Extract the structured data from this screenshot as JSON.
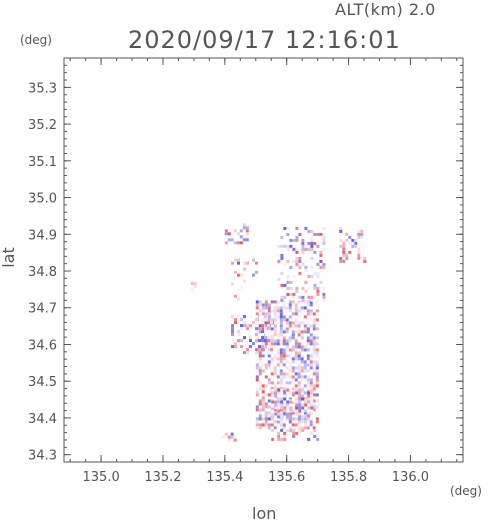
{
  "header": {
    "altitude_label": "ALT(km) 2.0",
    "timestamp": "2020/09/17 12:16:01"
  },
  "chart_data": {
    "type": "heatmap",
    "xlabel": "lon",
    "ylabel": "lat",
    "x_unit": "(deg)",
    "y_unit": "(deg)",
    "xlim": [
      134.88,
      136.17
    ],
    "ylim": [
      34.28,
      35.38
    ],
    "x_ticks": [
      "135.0",
      "135.2",
      "135.4",
      "135.6",
      "135.8",
      "136.0"
    ],
    "y_ticks": [
      "34.3",
      "34.4",
      "34.5",
      "34.6",
      "34.7",
      "34.8",
      "34.9",
      "35.0",
      "35.1",
      "35.2",
      "35.3"
    ],
    "colors": {
      "positive": "#e8595e",
      "negative": "#5a5ae0",
      "frame": "#555555"
    },
    "regions": [
      {
        "lon": [
          135.4,
          135.47
        ],
        "lat": [
          34.88,
          34.93
        ],
        "density": 0.5
      },
      {
        "lon": [
          135.38,
          135.45
        ],
        "lat": [
          34.34,
          34.36
        ],
        "density": 0.5
      },
      {
        "lon": [
          135.5,
          135.7
        ],
        "lat": [
          34.37,
          34.72
        ],
        "density": 0.75
      },
      {
        "lon": [
          135.55,
          135.68
        ],
        "lat": [
          34.4,
          34.48
        ],
        "density": 0.8
      },
      {
        "lon": [
          135.57,
          135.72
        ],
        "lat": [
          34.72,
          34.92
        ],
        "density": 0.35
      },
      {
        "lon": [
          135.77,
          135.85
        ],
        "lat": [
          34.83,
          34.92
        ],
        "density": 0.45
      },
      {
        "lon": [
          135.42,
          135.55
        ],
        "lat": [
          34.58,
          34.68
        ],
        "density": 0.45
      },
      {
        "lon": [
          135.55,
          135.7
        ],
        "lat": [
          34.34,
          34.37
        ],
        "density": 0.4
      },
      {
        "lon": [
          135.42,
          135.5
        ],
        "lat": [
          34.72,
          34.85
        ],
        "density": 0.2
      },
      {
        "lon": [
          135.29,
          135.31
        ],
        "lat": [
          34.75,
          34.77
        ],
        "density": 0.6
      }
    ]
  }
}
